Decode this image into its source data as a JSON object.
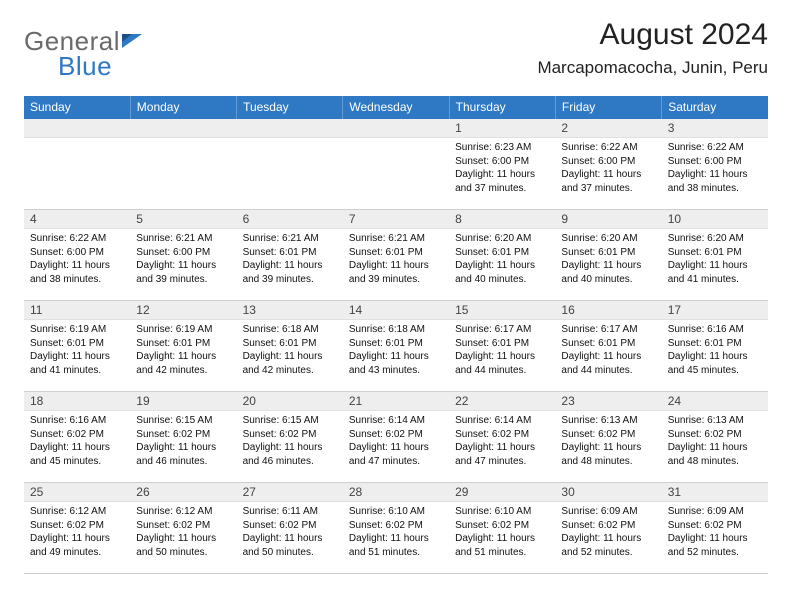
{
  "logo": {
    "general": "General",
    "blue": "Blue"
  },
  "title": "August 2024",
  "location": "Marcapomacocha, Junin, Peru",
  "colors": {
    "header_blue": "#2f78c4",
    "logo_grey": "#6a6a6a",
    "daynum_bg": "#eeeeee",
    "rule": "#cfcfcf"
  },
  "weekday_labels": [
    "Sunday",
    "Monday",
    "Tuesday",
    "Wednesday",
    "Thursday",
    "Friday",
    "Saturday"
  ],
  "weeks": [
    [
      {
        "n": "",
        "lines": []
      },
      {
        "n": "",
        "lines": []
      },
      {
        "n": "",
        "lines": []
      },
      {
        "n": "",
        "lines": []
      },
      {
        "n": "1",
        "lines": [
          "Sunrise: 6:23 AM",
          "Sunset: 6:00 PM",
          "Daylight: 11 hours and 37 minutes."
        ]
      },
      {
        "n": "2",
        "lines": [
          "Sunrise: 6:22 AM",
          "Sunset: 6:00 PM",
          "Daylight: 11 hours and 37 minutes."
        ]
      },
      {
        "n": "3",
        "lines": [
          "Sunrise: 6:22 AM",
          "Sunset: 6:00 PM",
          "Daylight: 11 hours and 38 minutes."
        ]
      }
    ],
    [
      {
        "n": "4",
        "lines": [
          "Sunrise: 6:22 AM",
          "Sunset: 6:00 PM",
          "Daylight: 11 hours and 38 minutes."
        ]
      },
      {
        "n": "5",
        "lines": [
          "Sunrise: 6:21 AM",
          "Sunset: 6:00 PM",
          "Daylight: 11 hours and 39 minutes."
        ]
      },
      {
        "n": "6",
        "lines": [
          "Sunrise: 6:21 AM",
          "Sunset: 6:01 PM",
          "Daylight: 11 hours and 39 minutes."
        ]
      },
      {
        "n": "7",
        "lines": [
          "Sunrise: 6:21 AM",
          "Sunset: 6:01 PM",
          "Daylight: 11 hours and 39 minutes."
        ]
      },
      {
        "n": "8",
        "lines": [
          "Sunrise: 6:20 AM",
          "Sunset: 6:01 PM",
          "Daylight: 11 hours and 40 minutes."
        ]
      },
      {
        "n": "9",
        "lines": [
          "Sunrise: 6:20 AM",
          "Sunset: 6:01 PM",
          "Daylight: 11 hours and 40 minutes."
        ]
      },
      {
        "n": "10",
        "lines": [
          "Sunrise: 6:20 AM",
          "Sunset: 6:01 PM",
          "Daylight: 11 hours and 41 minutes."
        ]
      }
    ],
    [
      {
        "n": "11",
        "lines": [
          "Sunrise: 6:19 AM",
          "Sunset: 6:01 PM",
          "Daylight: 11 hours and 41 minutes."
        ]
      },
      {
        "n": "12",
        "lines": [
          "Sunrise: 6:19 AM",
          "Sunset: 6:01 PM",
          "Daylight: 11 hours and 42 minutes."
        ]
      },
      {
        "n": "13",
        "lines": [
          "Sunrise: 6:18 AM",
          "Sunset: 6:01 PM",
          "Daylight: 11 hours and 42 minutes."
        ]
      },
      {
        "n": "14",
        "lines": [
          "Sunrise: 6:18 AM",
          "Sunset: 6:01 PM",
          "Daylight: 11 hours and 43 minutes."
        ]
      },
      {
        "n": "15",
        "lines": [
          "Sunrise: 6:17 AM",
          "Sunset: 6:01 PM",
          "Daylight: 11 hours and 44 minutes."
        ]
      },
      {
        "n": "16",
        "lines": [
          "Sunrise: 6:17 AM",
          "Sunset: 6:01 PM",
          "Daylight: 11 hours and 44 minutes."
        ]
      },
      {
        "n": "17",
        "lines": [
          "Sunrise: 6:16 AM",
          "Sunset: 6:01 PM",
          "Daylight: 11 hours and 45 minutes."
        ]
      }
    ],
    [
      {
        "n": "18",
        "lines": [
          "Sunrise: 6:16 AM",
          "Sunset: 6:02 PM",
          "Daylight: 11 hours and 45 minutes."
        ]
      },
      {
        "n": "19",
        "lines": [
          "Sunrise: 6:15 AM",
          "Sunset: 6:02 PM",
          "Daylight: 11 hours and 46 minutes."
        ]
      },
      {
        "n": "20",
        "lines": [
          "Sunrise: 6:15 AM",
          "Sunset: 6:02 PM",
          "Daylight: 11 hours and 46 minutes."
        ]
      },
      {
        "n": "21",
        "lines": [
          "Sunrise: 6:14 AM",
          "Sunset: 6:02 PM",
          "Daylight: 11 hours and 47 minutes."
        ]
      },
      {
        "n": "22",
        "lines": [
          "Sunrise: 6:14 AM",
          "Sunset: 6:02 PM",
          "Daylight: 11 hours and 47 minutes."
        ]
      },
      {
        "n": "23",
        "lines": [
          "Sunrise: 6:13 AM",
          "Sunset: 6:02 PM",
          "Daylight: 11 hours and 48 minutes."
        ]
      },
      {
        "n": "24",
        "lines": [
          "Sunrise: 6:13 AM",
          "Sunset: 6:02 PM",
          "Daylight: 11 hours and 48 minutes."
        ]
      }
    ],
    [
      {
        "n": "25",
        "lines": [
          "Sunrise: 6:12 AM",
          "Sunset: 6:02 PM",
          "Daylight: 11 hours and 49 minutes."
        ]
      },
      {
        "n": "26",
        "lines": [
          "Sunrise: 6:12 AM",
          "Sunset: 6:02 PM",
          "Daylight: 11 hours and 50 minutes."
        ]
      },
      {
        "n": "27",
        "lines": [
          "Sunrise: 6:11 AM",
          "Sunset: 6:02 PM",
          "Daylight: 11 hours and 50 minutes."
        ]
      },
      {
        "n": "28",
        "lines": [
          "Sunrise: 6:10 AM",
          "Sunset: 6:02 PM",
          "Daylight: 11 hours and 51 minutes."
        ]
      },
      {
        "n": "29",
        "lines": [
          "Sunrise: 6:10 AM",
          "Sunset: 6:02 PM",
          "Daylight: 11 hours and 51 minutes."
        ]
      },
      {
        "n": "30",
        "lines": [
          "Sunrise: 6:09 AM",
          "Sunset: 6:02 PM",
          "Daylight: 11 hours and 52 minutes."
        ]
      },
      {
        "n": "31",
        "lines": [
          "Sunrise: 6:09 AM",
          "Sunset: 6:02 PM",
          "Daylight: 11 hours and 52 minutes."
        ]
      }
    ]
  ]
}
